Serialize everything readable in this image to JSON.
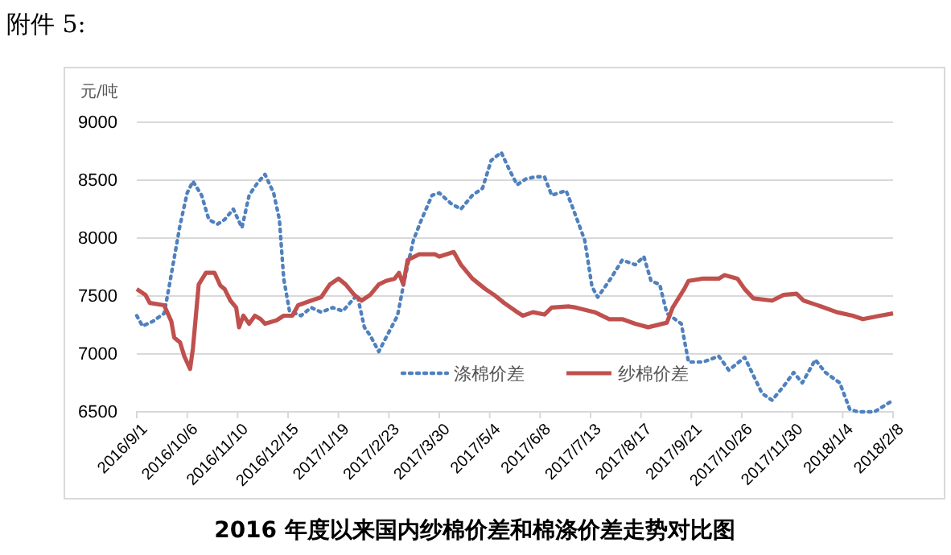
{
  "chart_data": {
    "type": "line",
    "title": "2016 年度以来国内纱棉价差和棉涤价差走势对比图",
    "ylabel": "元/吨",
    "annotations": [
      "附件 5:"
    ],
    "xlim": [
      "2016-09-01",
      "2018-02-08"
    ],
    "xticks": [
      {
        "value": "2016-09-01",
        "label": "2016/9/1"
      },
      {
        "value": "2016-10-06",
        "label": "2016/10/6"
      },
      {
        "value": "2016-11-10",
        "label": "2016/11/10"
      },
      {
        "value": "2016-12-15",
        "label": "2016/12/15"
      },
      {
        "value": "2017-01-19",
        "label": "2017/1/19"
      },
      {
        "value": "2017-02-23",
        "label": "2017/2/23"
      },
      {
        "value": "2017-03-30",
        "label": "2017/3/30"
      },
      {
        "value": "2017-05-04",
        "label": "2017/5/4"
      },
      {
        "value": "2017-06-08",
        "label": "2017/6/8"
      },
      {
        "value": "2017-07-13",
        "label": "2017/7/13"
      },
      {
        "value": "2017-08-17",
        "label": "2017/8/17"
      },
      {
        "value": "2017-09-21",
        "label": "2017/9/21"
      },
      {
        "value": "2017-10-26",
        "label": "2017/10/26"
      },
      {
        "value": "2017-11-30",
        "label": "2017/11/30"
      },
      {
        "value": "2018-01-04",
        "label": "2018/1/4"
      },
      {
        "value": "2018-02-08",
        "label": "2018/2/8"
      }
    ],
    "ylim": [
      6500,
      9000
    ],
    "yticks": [
      6500,
      7000,
      7500,
      8000,
      8500,
      9000
    ],
    "grid": "y",
    "legend": "bottom",
    "marker": "none",
    "series": [
      {
        "name": "涤棉价差",
        "color": "#4f81bd",
        "line_style": "dotted",
        "x": [
          "2016-09-01",
          "2016-09-05",
          "2016-09-12",
          "2016-09-20",
          "2016-09-23",
          "2016-10-01",
          "2016-10-06",
          "2016-10-10",
          "2016-10-16",
          "2016-10-21",
          "2016-10-27",
          "2016-11-01",
          "2016-11-07",
          "2016-11-13",
          "2016-11-18",
          "2016-11-24",
          "2016-11-29",
          "2016-12-05",
          "2016-12-09",
          "2016-12-12",
          "2016-12-16",
          "2016-12-24",
          "2016-12-31",
          "2017-01-07",
          "2017-01-15",
          "2017-01-22",
          "2017-02-01",
          "2017-02-06",
          "2017-02-10",
          "2017-02-16",
          "2017-02-21",
          "2017-03-01",
          "2017-03-06",
          "2017-03-12",
          "2017-03-17",
          "2017-03-25",
          "2017-03-30",
          "2017-04-07",
          "2017-04-14",
          "2017-04-22",
          "2017-04-29",
          "2017-05-05",
          "2017-05-12",
          "2017-05-18",
          "2017-05-23",
          "2017-05-29",
          "2017-06-05",
          "2017-06-11",
          "2017-06-16",
          "2017-06-26",
          "2017-07-01",
          "2017-07-09",
          "2017-07-14",
          "2017-07-18",
          "2017-07-27",
          "2017-08-04",
          "2017-08-13",
          "2017-08-19",
          "2017-08-24",
          "2017-08-30",
          "2017-09-04",
          "2017-09-14",
          "2017-09-19",
          "2017-09-29",
          "2017-10-10",
          "2017-10-17",
          "2017-10-28",
          "2017-11-09",
          "2017-11-16",
          "2017-11-24",
          "2017-12-01",
          "2017-12-07",
          "2017-12-16",
          "2017-12-23",
          "2018-01-02",
          "2018-01-09",
          "2018-01-15",
          "2018-01-26",
          "2018-02-08"
        ],
        "values": [
          7330,
          7240,
          7280,
          7350,
          7550,
          8110,
          8390,
          8490,
          8370,
          8160,
          8120,
          8160,
          8250,
          8090,
          8370,
          8480,
          8550,
          8390,
          8160,
          7650,
          7370,
          7330,
          7400,
          7360,
          7400,
          7370,
          7510,
          7230,
          7160,
          7020,
          7140,
          7330,
          7650,
          7980,
          8140,
          8370,
          8390,
          8300,
          8250,
          8370,
          8430,
          8670,
          8740,
          8580,
          8460,
          8510,
          8530,
          8530,
          8370,
          8410,
          8250,
          7980,
          7580,
          7490,
          7650,
          7810,
          7770,
          7840,
          7630,
          7600,
          7350,
          7260,
          6930,
          6930,
          6980,
          6860,
          6970,
          6660,
          6600,
          6720,
          6840,
          6750,
          6950,
          6840,
          6750,
          6520,
          6500,
          6500,
          6600
        ]
      },
      {
        "name": "纱棉价差",
        "color": "#c0504d",
        "line_style": "solid",
        "x": [
          "2016-09-01",
          "2016-09-07",
          "2016-09-10",
          "2016-09-20",
          "2016-09-25",
          "2016-09-27",
          "2016-10-01",
          "2016-10-04",
          "2016-10-08",
          "2016-10-10",
          "2016-10-14",
          "2016-10-19",
          "2016-10-25",
          "2016-10-29",
          "2016-11-01",
          "2016-11-05",
          "2016-11-09",
          "2016-11-11",
          "2016-11-14",
          "2016-11-18",
          "2016-11-22",
          "2016-11-26",
          "2016-11-29",
          "2016-12-07",
          "2016-12-12",
          "2016-12-18",
          "2016-12-22",
          "2016-12-31",
          "2017-01-07",
          "2017-01-13",
          "2017-01-19",
          "2017-01-24",
          "2017-01-30",
          "2017-02-04",
          "2017-02-10",
          "2017-02-16",
          "2017-02-21",
          "2017-02-27",
          "2017-03-02",
          "2017-03-05",
          "2017-03-08",
          "2017-03-16",
          "2017-03-27",
          "2017-03-30",
          "2017-04-09",
          "2017-04-14",
          "2017-04-22",
          "2017-05-01",
          "2017-05-07",
          "2017-05-14",
          "2017-05-22",
          "2017-05-27",
          "2017-06-03",
          "2017-06-11",
          "2017-06-16",
          "2017-06-28",
          "2017-07-03",
          "2017-07-16",
          "2017-07-26",
          "2017-08-04",
          "2017-08-13",
          "2017-08-22",
          "2017-09-04",
          "2017-09-08",
          "2017-09-16",
          "2017-09-19",
          "2017-09-29",
          "2017-10-10",
          "2017-10-14",
          "2017-10-23",
          "2017-10-28",
          "2017-11-03",
          "2017-11-16",
          "2017-11-24",
          "2017-12-03",
          "2017-12-08",
          "2017-12-20",
          "2017-12-31",
          "2018-01-11",
          "2018-01-18",
          "2018-01-30",
          "2018-02-08"
        ],
        "values": [
          7560,
          7510,
          7440,
          7420,
          7280,
          7140,
          7100,
          6980,
          6870,
          7050,
          7600,
          7700,
          7700,
          7590,
          7560,
          7460,
          7400,
          7230,
          7330,
          7260,
          7330,
          7300,
          7260,
          7290,
          7330,
          7330,
          7420,
          7460,
          7490,
          7600,
          7650,
          7600,
          7510,
          7460,
          7510,
          7600,
          7630,
          7650,
          7700,
          7600,
          7810,
          7860,
          7860,
          7840,
          7880,
          7770,
          7650,
          7560,
          7510,
          7440,
          7370,
          7330,
          7360,
          7340,
          7400,
          7410,
          7400,
          7360,
          7300,
          7300,
          7260,
          7230,
          7270,
          7400,
          7560,
          7630,
          7650,
          7650,
          7680,
          7650,
          7560,
          7480,
          7460,
          7510,
          7520,
          7460,
          7410,
          7360,
          7330,
          7300,
          7330,
          7350
        ]
      }
    ]
  }
}
